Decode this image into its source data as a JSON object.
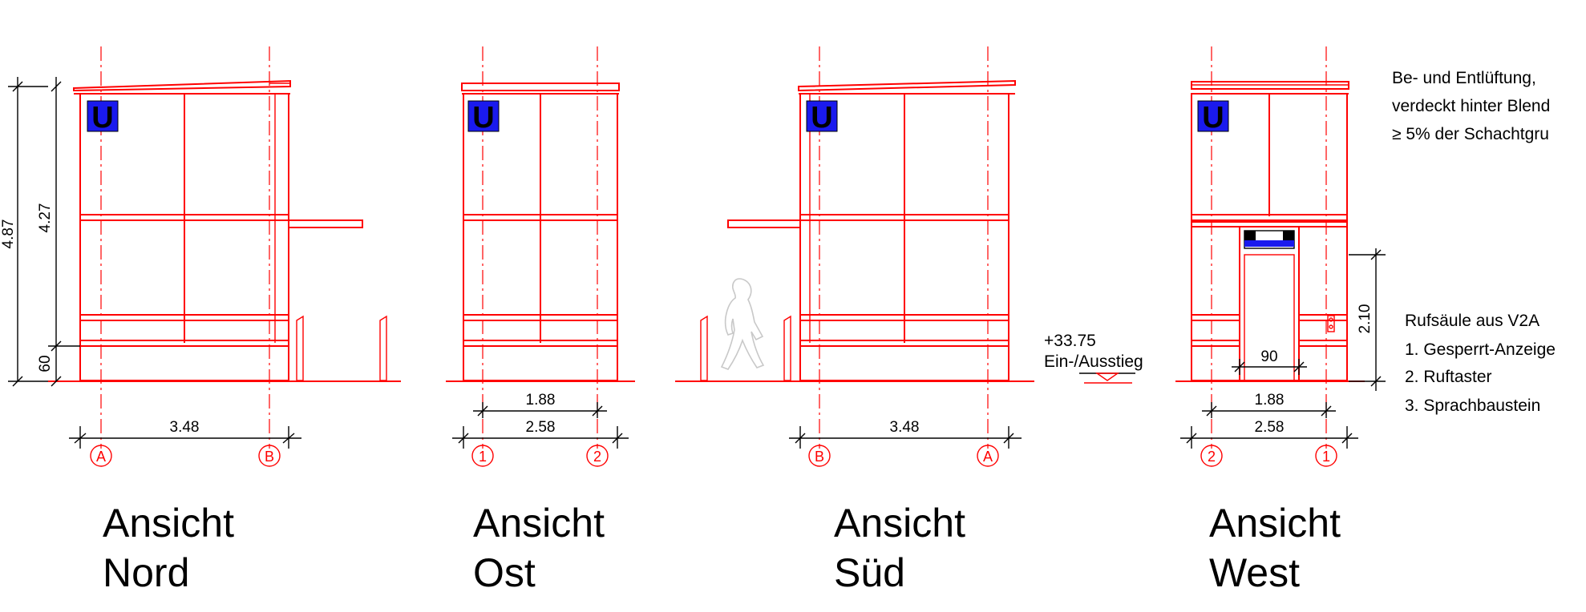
{
  "views": [
    {
      "id": "nord",
      "title_line1": "Ansicht",
      "title_line2": "Nord",
      "axis_left": "A",
      "axis_right": "B",
      "width_label": "3.48"
    },
    {
      "id": "ost",
      "title_line1": "Ansicht",
      "title_line2": "Ost",
      "axis_left": "1",
      "axis_right": "2",
      "inner_label": "1.88",
      "width_label": "2.58"
    },
    {
      "id": "sued",
      "title_line1": "Ansicht",
      "title_line2": "Süd",
      "axis_left": "B",
      "axis_right": "A",
      "width_label": "3.48"
    },
    {
      "id": "west",
      "title_line1": "Ansicht",
      "title_line2": "West",
      "axis_left": "2",
      "axis_right": "1",
      "door_label": "90",
      "inner_label": "1.88",
      "width_label": "2.58",
      "door_height_label": "2.10"
    }
  ],
  "vertical_dims": {
    "total": "4.87",
    "upper": "4.27",
    "base": "60"
  },
  "sign_letter": "U",
  "level": {
    "value": "+33.75",
    "label": "Ein-/Ausstieg"
  },
  "notes": {
    "ventilation": [
      "Be- und Entlüftung,",
      "verdeckt hinter Blend",
      "≥ 5% der Schachtgru"
    ],
    "call_post": [
      "Rufsäule aus V2A",
      "1. Gesperrt-Anzeige",
      "2. Ruftaster",
      "3. Sprachbaustein"
    ]
  },
  "colors": {
    "lines": "#ff0000",
    "sign": "#1a1aee",
    "dimension": "#000000"
  }
}
